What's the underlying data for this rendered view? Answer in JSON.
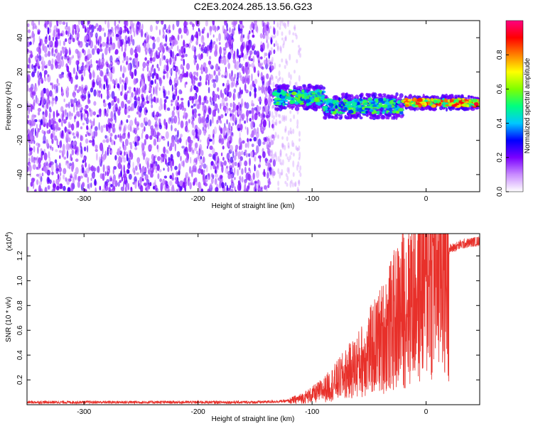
{
  "title": "C2E3.2024.285.13.56.G23",
  "chart_data": [
    {
      "type": "heatmap",
      "xlabel": "Height of straight line (km)",
      "ylabel": "Frequency (Hz)",
      "xlim": [
        -350,
        47
      ],
      "ylim": [
        -50,
        50
      ],
      "xticks": [
        -300,
        -200,
        -100,
        0
      ],
      "yticks": [
        -40,
        -20,
        0,
        20,
        40
      ],
      "colorbar": {
        "label": "Normalized spectral amplitude",
        "range": [
          0,
          1
        ],
        "ticks": [
          "0.0",
          "0.2",
          "0.4",
          "0.6",
          "0.8"
        ],
        "colors": [
          "#ffffff",
          "#c98cff",
          "#7a00ff",
          "#0000ff",
          "#00c8ff",
          "#00ff80",
          "#7fff00",
          "#ffff00",
          "#ff8000",
          "#ff0000",
          "#ff0080"
        ]
      },
      "description_regions": [
        {
          "x_range": [
            -350,
            -133
          ],
          "frequency_range": [
            -50,
            50
          ],
          "amplitude": "low noise (~0.15-0.2)"
        },
        {
          "x_range": [
            -133,
            47
          ],
          "frequency_center": [
            5,
            2
          ],
          "amplitude": "signal band (0.3-0.9)"
        }
      ]
    },
    {
      "type": "line",
      "xlabel": "Height of straight line (km)",
      "ylabel": "SNR (10 * v/v)",
      "yscale_label": "(x10",
      "yscale_exponent": "4",
      "xlim": [
        -350,
        47
      ],
      "ylim": [
        0,
        1.38
      ],
      "xticks": [
        -300,
        -200,
        -100,
        0
      ],
      "yticks": [
        "0.2",
        "0.4",
        "0.6",
        "0.8",
        "1.0",
        "1.2"
      ],
      "series": [
        {
          "color": "#e8302a",
          "x": [
            -350,
            -300,
            -250,
            -200,
            -150,
            -120,
            -110,
            -100,
            -90,
            -80,
            -70,
            -60,
            -50,
            -40,
            -30,
            -20,
            -10,
            0,
            10,
            20,
            30,
            40,
            47
          ],
          "y": [
            0.02,
            0.02,
            0.02,
            0.02,
            0.02,
            0.03,
            0.05,
            0.08,
            0.12,
            0.18,
            0.25,
            0.32,
            0.42,
            0.52,
            0.65,
            0.78,
            0.92,
            1.05,
            1.17,
            1.25,
            1.29,
            1.31,
            1.32
          ]
        }
      ]
    }
  ]
}
